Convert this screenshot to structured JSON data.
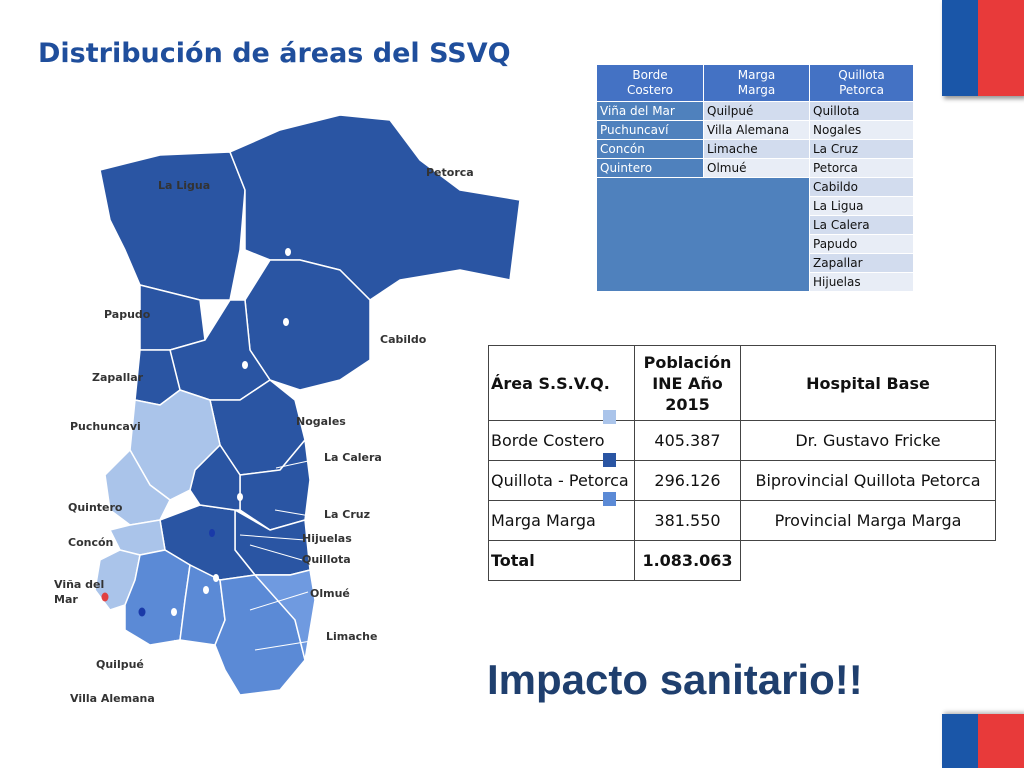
{
  "title": "Distribución de áreas del SSVQ",
  "subtitle": "Impacto sanitario!!",
  "colors": {
    "borde_costero": "#aac4ea",
    "quillota_petorca": "#2a55a3",
    "marga_marga": "#5b8ad6",
    "table_header": "#4472c4"
  },
  "areas_table": {
    "headers": [
      "Borde\nCostero",
      "Marga\nMarga",
      "Quillota\nPetorca"
    ],
    "header_lines": [
      [
        "Borde",
        "Costero"
      ],
      [
        "Marga",
        "Marga"
      ],
      [
        "Quillota",
        "Petorca"
      ]
    ],
    "rows": [
      [
        "Viña del Mar",
        "Quilpué",
        "Quillota"
      ],
      [
        "Puchuncaví",
        "Villa Alemana",
        "Nogales"
      ],
      [
        "Concón",
        "Limache",
        "La Cruz"
      ],
      [
        "Quintero",
        "Olmué",
        "Petorca"
      ],
      [
        "",
        "",
        "Cabildo"
      ],
      [
        "",
        "",
        "La Ligua"
      ],
      [
        "",
        "",
        "La Calera"
      ],
      [
        "",
        "",
        "Papudo"
      ],
      [
        "",
        "",
        "Zapallar"
      ],
      [
        "",
        "",
        "Hijuelas"
      ]
    ]
  },
  "population_table": {
    "headers": [
      "Área S.S.V.Q.",
      "Población INE Año 2015",
      "Hospital Base"
    ],
    "header_lines": [
      [
        "Área S.S.V.Q."
      ],
      [
        "Población",
        "INE Año",
        "2015"
      ],
      [
        "Hospital Base"
      ]
    ],
    "rows": [
      [
        "Borde Costero",
        "405.387",
        "Dr. Gustavo Fricke"
      ],
      [
        "Quillota - Petorca",
        "296.126",
        "Biprovincial Quillota Petorca"
      ],
      [
        "Marga Marga",
        "381.550",
        "Provincial Marga Marga"
      ],
      [
        "Total",
        "1.083.063",
        ""
      ]
    ]
  },
  "map_labels": {
    "petorca": "Petorca",
    "la_ligua": "La Ligua",
    "papudo": "Papudo",
    "cabildo": "Cabildo",
    "zapallar": "Zapallar",
    "puchuncavi": "Puchuncavi",
    "nogales": "Nogales",
    "la_calera": "La Calera",
    "quintero": "Quintero",
    "la_cruz": "La Cruz",
    "hijuelas": "Hijuelas",
    "concon": "Concón",
    "quillota": "Quillota",
    "vina_line1": "Viña del",
    "vina_line2": "Mar",
    "olmue": "Olmué",
    "limache": "Limache",
    "quilpue": "Quilpué",
    "villa_alemana": "Villa Alemana"
  }
}
